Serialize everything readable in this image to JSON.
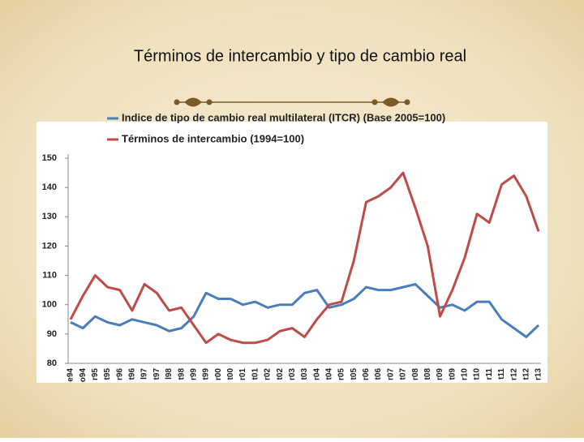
{
  "chart_data": {
    "type": "line",
    "title": "Términos de intercambio y tipo de cambio real",
    "categories": [
      "e94",
      "o94",
      "r95",
      "t95",
      "r96",
      "t96",
      "l97",
      "t97",
      "l98",
      "t98",
      "r99",
      "t99",
      "r00",
      "t00",
      "r01",
      "t01",
      "r02",
      "t02",
      "r03",
      "t03",
      "r04",
      "t04",
      "r05",
      "t05",
      "r06",
      "t06",
      "r07",
      "t07",
      "r08",
      "t08",
      "r09",
      "t09",
      "r10",
      "t10",
      "r11",
      "t11",
      "r12",
      "t12",
      "r13"
    ],
    "series": [
      {
        "name": "Indice de tipo de cambio real multilateral (ITCR) (Base 2005=100)",
        "color": "#4a7ebb",
        "values": [
          94,
          92,
          96,
          94,
          93,
          95,
          94,
          93,
          91,
          92,
          96,
          104,
          102,
          102,
          100,
          101,
          99,
          100,
          100,
          104,
          105,
          99,
          100,
          102,
          106,
          105,
          105,
          106,
          107,
          103,
          99,
          100,
          98,
          101,
          101,
          95,
          92,
          89,
          93
        ]
      },
      {
        "name": "Términos de intercambio (1994=100)",
        "color": "#be4b48",
        "values": [
          95,
          103,
          110,
          106,
          105,
          98,
          107,
          104,
          98,
          99,
          93,
          87,
          90,
          88,
          87,
          87,
          88,
          91,
          92,
          89,
          95,
          100,
          101,
          115,
          135,
          137,
          140,
          145,
          133,
          120,
          96,
          105,
          116,
          131,
          128,
          141,
          144,
          137,
          125
        ]
      }
    ],
    "ylim": [
      80,
      150
    ],
    "yticks": [
      80,
      90,
      100,
      110,
      120,
      130,
      140,
      150
    ],
    "grid": false
  }
}
